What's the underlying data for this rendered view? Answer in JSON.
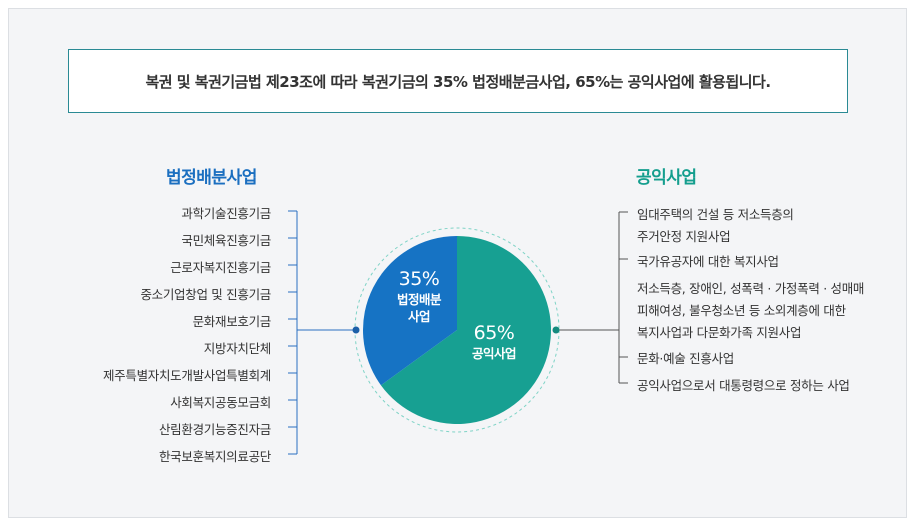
{
  "notice": "복권 및 복권기금법 제23조에 따라 복권기금의 35% 법정배분금사업, 65%는 공익사업에 활용됩니다.",
  "left": {
    "title": "법정배분사업",
    "items": [
      "과학기술진흥기금",
      "국민체육진흥기금",
      "근로자복지진흥기금",
      "중소기업창업 및 진흥기금",
      "문화재보호기금",
      "지방자치단체",
      "제주특별자치도개발사업특별회계",
      "사회복지공동모금회",
      "산림환경기능증진자금",
      "한국보훈복지의료공단"
    ]
  },
  "right": {
    "title": "공익사업",
    "items": [
      {
        "lines": [
          "임대주택의 건설 등 저소득층의",
          "주거안정 지원사업"
        ]
      },
      {
        "lines": [
          "국가유공자에 대한 복지사업"
        ]
      },
      {
        "lines": [
          "저소득층, 장애인, 성폭력 · 가정폭력 · 성매매",
          "피해여성, 불우청소년 등 소외계층에 대한",
          "복지사업과 다문화가족 지원사업"
        ]
      },
      {
        "lines": [
          "문화·예술 진흥사업"
        ]
      },
      {
        "lines": [
          "공익사업으로서 대통령령으로 정하는 사업"
        ]
      }
    ]
  },
  "chart_data": {
    "type": "pie",
    "slices": [
      {
        "pct": "35%",
        "label_lines": [
          "법정배분",
          "사업"
        ],
        "value": 35,
        "color": "#1673c4"
      },
      {
        "pct": "65%",
        "label_lines": [
          "공익사업"
        ],
        "value": 65,
        "color": "#17a092"
      }
    ]
  },
  "colors": {
    "blue": "#1b6fc0",
    "teal": "#149e8e",
    "line_left": "#2a6fc0",
    "line_right": "#555555"
  }
}
